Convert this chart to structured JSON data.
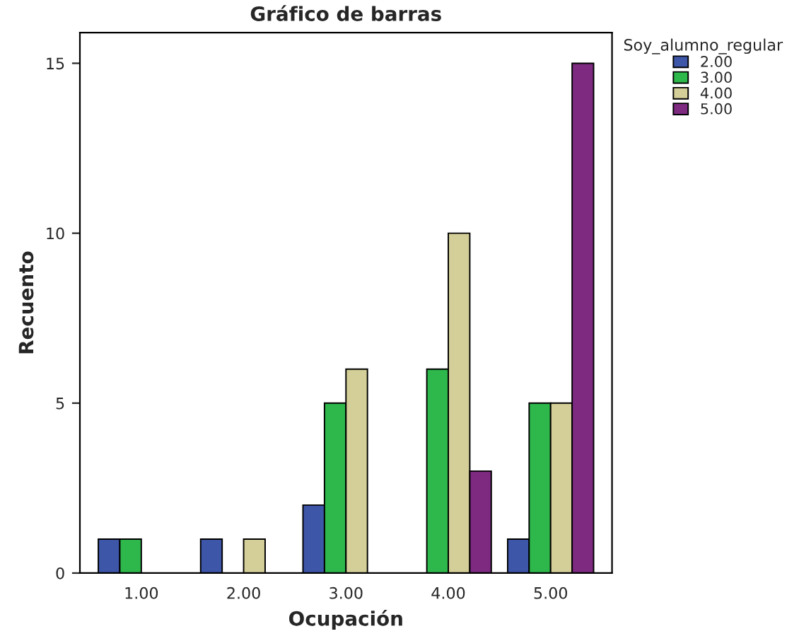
{
  "chart_data": {
    "type": "bar",
    "title": "Gráfico de barras",
    "xlabel": "Ocupación",
    "ylabel": "Recuento",
    "legend_title": "Soy_alumno_regular",
    "categories": [
      "1.00",
      "2.00",
      "3.00",
      "4.00",
      "5.00"
    ],
    "series": [
      {
        "name": "2.00",
        "color": "#3e56a8",
        "values": [
          1,
          1,
          2,
          null,
          1
        ]
      },
      {
        "name": "3.00",
        "color": "#2eb84c",
        "values": [
          1,
          null,
          5,
          6,
          5
        ]
      },
      {
        "name": "4.00",
        "color": "#d4cf98",
        "values": [
          null,
          1,
          6,
          10,
          5
        ]
      },
      {
        "name": "5.00",
        "color": "#7d2a80",
        "values": [
          null,
          null,
          null,
          3,
          15
        ]
      }
    ],
    "ylim": [
      0,
      15.9
    ],
    "yticks": [
      0,
      5,
      10,
      15
    ],
    "grid": false,
    "legend": "top right"
  }
}
